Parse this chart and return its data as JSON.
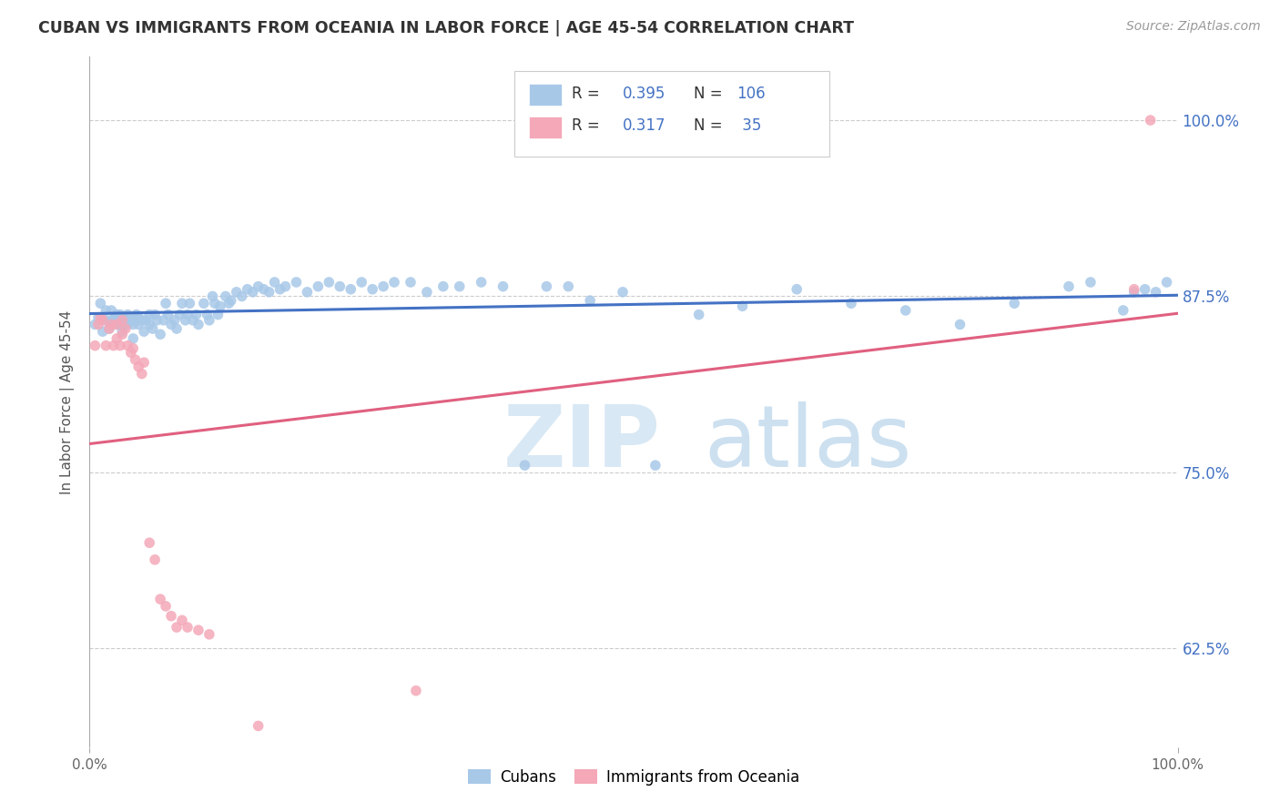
{
  "title": "CUBAN VS IMMIGRANTS FROM OCEANIA IN LABOR FORCE | AGE 45-54 CORRELATION CHART",
  "source": "Source: ZipAtlas.com",
  "ylabel": "In Labor Force | Age 45-54",
  "ytick_values": [
    0.625,
    0.75,
    0.875,
    1.0
  ],
  "ytick_labels": [
    "62.5%",
    "75.0%",
    "87.5%",
    "100.0%"
  ],
  "xlim": [
    0.0,
    1.0
  ],
  "ylim": [
    0.555,
    1.045
  ],
  "legend_R_cubans": "0.395",
  "legend_N_cubans": "106",
  "legend_R_oceania": "0.317",
  "legend_N_oceania": "35",
  "cubans_color": "#a8c8e8",
  "oceania_color": "#f4a8b8",
  "trendline_cubans_color": "#4472c4",
  "trendline_oceania_color": "#e06080",
  "watermark_color": "#d8e8f4",
  "background_color": "#ffffff",
  "grid_color": "#cccccc",
  "cubans_x": [
    0.005,
    0.008,
    0.01,
    0.012,
    0.015,
    0.015,
    0.018,
    0.02,
    0.02,
    0.022,
    0.025,
    0.025,
    0.028,
    0.028,
    0.03,
    0.03,
    0.032,
    0.033,
    0.035,
    0.035,
    0.038,
    0.04,
    0.04,
    0.042,
    0.043,
    0.045,
    0.045,
    0.048,
    0.05,
    0.052,
    0.055,
    0.055,
    0.058,
    0.06,
    0.062,
    0.065,
    0.068,
    0.07,
    0.072,
    0.075,
    0.078,
    0.08,
    0.083,
    0.085,
    0.088,
    0.09,
    0.092,
    0.095,
    0.098,
    0.1,
    0.105,
    0.108,
    0.11,
    0.113,
    0.115,
    0.118,
    0.12,
    0.125,
    0.128,
    0.13,
    0.135,
    0.14,
    0.145,
    0.15,
    0.155,
    0.16,
    0.165,
    0.17,
    0.175,
    0.18,
    0.19,
    0.2,
    0.21,
    0.22,
    0.23,
    0.24,
    0.25,
    0.26,
    0.27,
    0.28,
    0.295,
    0.31,
    0.325,
    0.34,
    0.36,
    0.38,
    0.4,
    0.42,
    0.44,
    0.46,
    0.49,
    0.52,
    0.56,
    0.6,
    0.65,
    0.7,
    0.75,
    0.8,
    0.85,
    0.9,
    0.92,
    0.95,
    0.96,
    0.97,
    0.98,
    0.99
  ],
  "cubans_y": [
    0.855,
    0.86,
    0.87,
    0.85,
    0.858,
    0.865,
    0.852,
    0.858,
    0.865,
    0.858,
    0.855,
    0.862,
    0.855,
    0.862,
    0.85,
    0.858,
    0.86,
    0.855,
    0.855,
    0.862,
    0.858,
    0.845,
    0.855,
    0.858,
    0.862,
    0.855,
    0.86,
    0.858,
    0.85,
    0.858,
    0.855,
    0.862,
    0.852,
    0.862,
    0.858,
    0.848,
    0.858,
    0.87,
    0.862,
    0.855,
    0.858,
    0.852,
    0.862,
    0.87,
    0.858,
    0.862,
    0.87,
    0.858,
    0.862,
    0.855,
    0.87,
    0.862,
    0.858,
    0.875,
    0.87,
    0.862,
    0.868,
    0.875,
    0.87,
    0.872,
    0.878,
    0.875,
    0.88,
    0.878,
    0.882,
    0.88,
    0.878,
    0.885,
    0.88,
    0.882,
    0.885,
    0.878,
    0.882,
    0.885,
    0.882,
    0.88,
    0.885,
    0.88,
    0.882,
    0.885,
    0.885,
    0.878,
    0.882,
    0.882,
    0.885,
    0.882,
    0.755,
    0.882,
    0.882,
    0.872,
    0.878,
    0.755,
    0.862,
    0.868,
    0.88,
    0.87,
    0.865,
    0.855,
    0.87,
    0.882,
    0.885,
    0.865,
    0.878,
    0.88,
    0.878,
    0.885
  ],
  "oceania_x": [
    0.005,
    0.008,
    0.01,
    0.012,
    0.015,
    0.018,
    0.02,
    0.022,
    0.025,
    0.025,
    0.028,
    0.03,
    0.03,
    0.033,
    0.035,
    0.038,
    0.04,
    0.042,
    0.045,
    0.048,
    0.05,
    0.055,
    0.06,
    0.065,
    0.07,
    0.075,
    0.08,
    0.085,
    0.09,
    0.1,
    0.11,
    0.155,
    0.3,
    0.96,
    0.975
  ],
  "oceania_y": [
    0.84,
    0.855,
    0.86,
    0.858,
    0.84,
    0.852,
    0.855,
    0.84,
    0.845,
    0.855,
    0.84,
    0.848,
    0.858,
    0.852,
    0.84,
    0.835,
    0.838,
    0.83,
    0.825,
    0.82,
    0.828,
    0.7,
    0.688,
    0.66,
    0.655,
    0.648,
    0.64,
    0.645,
    0.64,
    0.638,
    0.635,
    0.57,
    0.595,
    0.88,
    1.0
  ]
}
